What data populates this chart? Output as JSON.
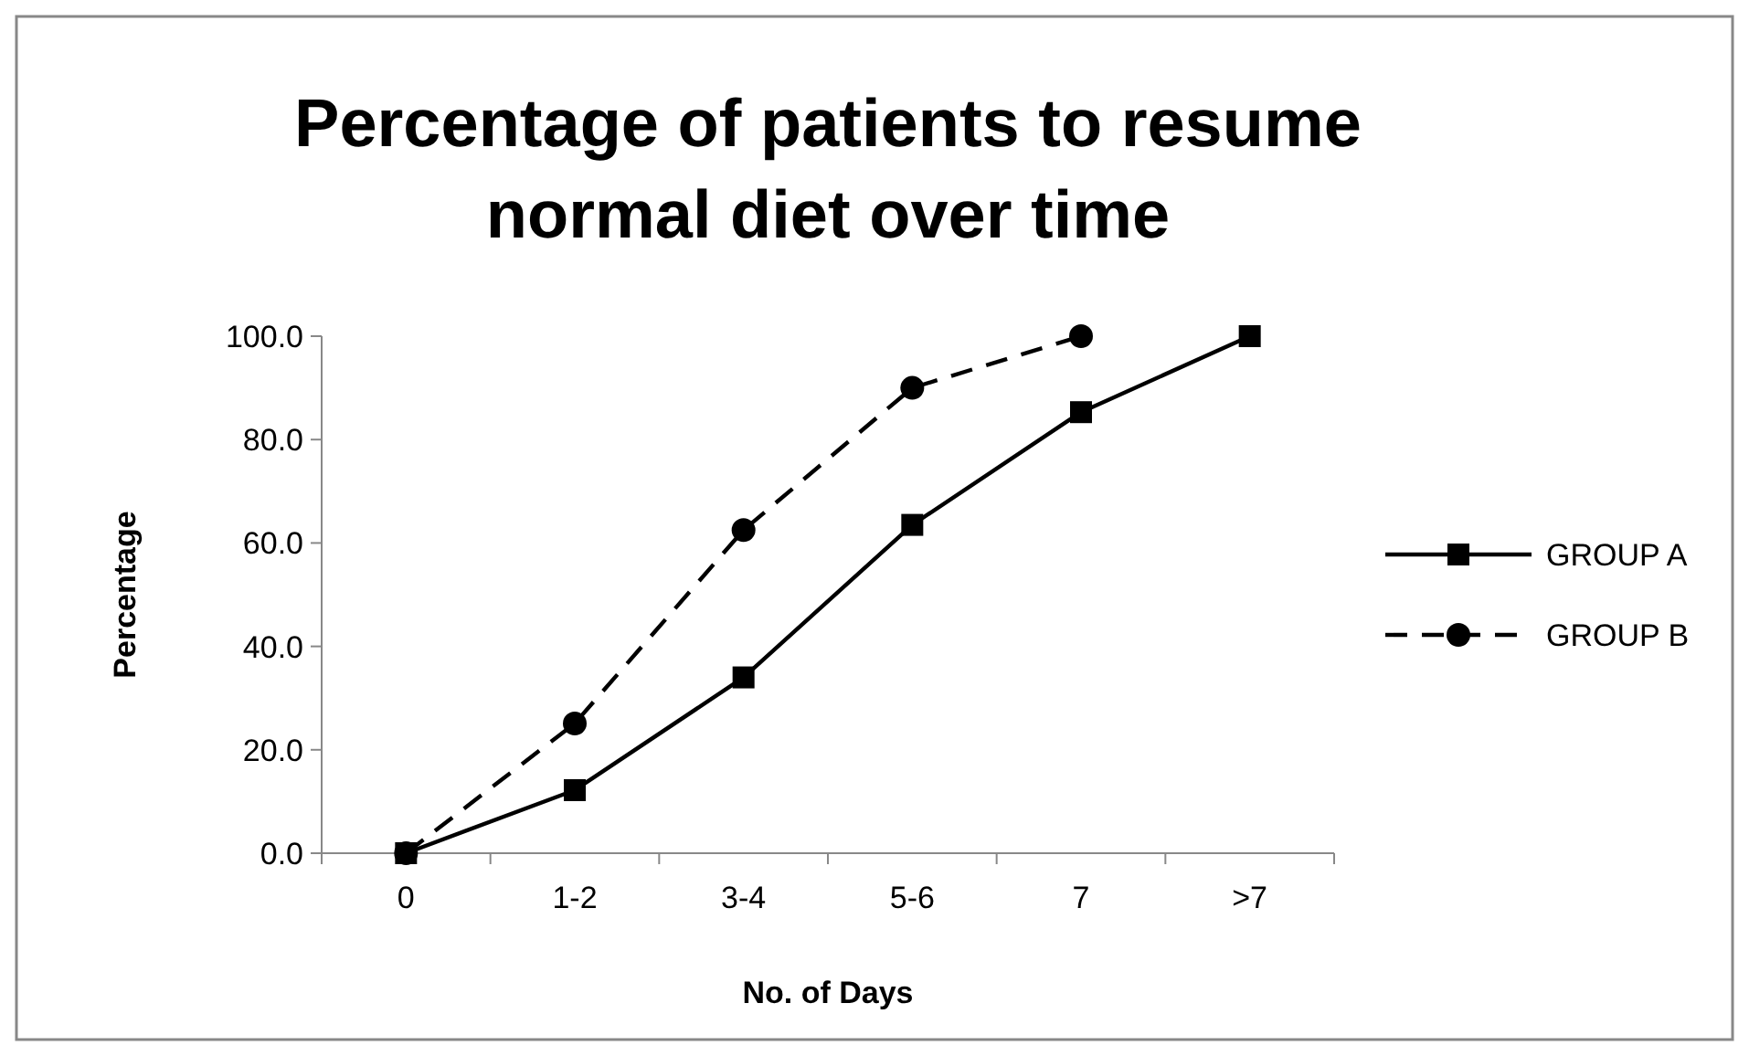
{
  "chart_data": {
    "type": "line",
    "title": "Percentage of patients to resume normal diet over time",
    "xlabel": "No. of Days",
    "ylabel": "Percentage",
    "categories": [
      "0",
      "1-2",
      "3-4",
      "5-6",
      "7",
      ">7"
    ],
    "ylim": [
      0,
      100
    ],
    "yticks": [
      {
        "value": 0,
        "label": "0.0"
      },
      {
        "value": 20,
        "label": "20.0"
      },
      {
        "value": 40,
        "label": "40.0"
      },
      {
        "value": 60,
        "label": "60.0"
      },
      {
        "value": 80,
        "label": "80.0"
      },
      {
        "value": 100,
        "label": "100.0"
      }
    ],
    "grid": false,
    "legend": "right",
    "series": [
      {
        "name": "GROUP A",
        "color": "#000000",
        "values": [
          0,
          12.2,
          34.0,
          63.5,
          85.3,
          100
        ],
        "marker": "square",
        "line_style": "solid"
      },
      {
        "name": "GROUP B",
        "color": "#000000",
        "values": [
          0,
          25.1,
          62.5,
          90.0,
          100,
          null
        ],
        "marker": "circle",
        "line_style": "dashed"
      }
    ]
  }
}
